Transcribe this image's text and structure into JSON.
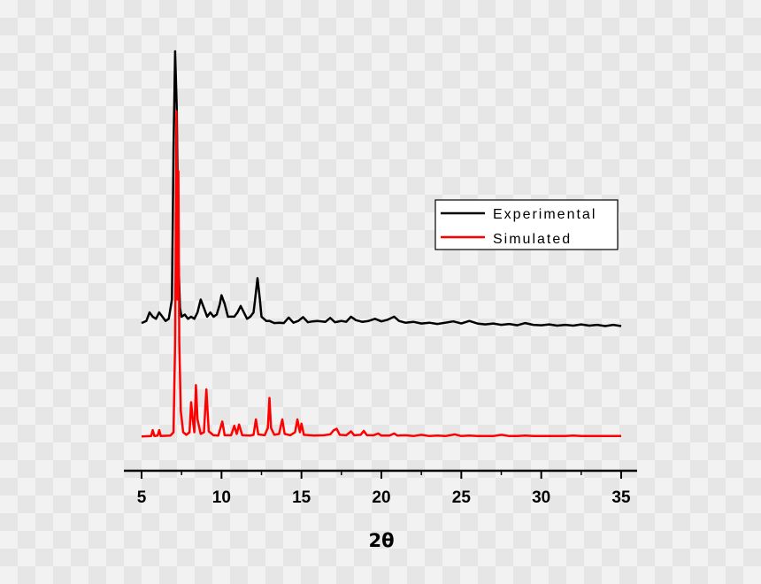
{
  "chart_data": {
    "type": "line",
    "title": "",
    "xlabel": "2θ",
    "ylabel": "",
    "xlim": [
      4,
      36
    ],
    "ylim": [
      0,
      110
    ],
    "xticks": [
      5,
      10,
      15,
      20,
      25,
      30,
      35
    ],
    "grid": false,
    "legend_position": "center-right",
    "series": [
      {
        "name": "Experimental",
        "color": "#000000",
        "points": [
          [
            5.0,
            34.5
          ],
          [
            5.3,
            35
          ],
          [
            5.5,
            37
          ],
          [
            5.7,
            36
          ],
          [
            5.9,
            35.5
          ],
          [
            6.1,
            37
          ],
          [
            6.3,
            36
          ],
          [
            6.5,
            35
          ],
          [
            6.7,
            35.5
          ],
          [
            6.9,
            40
          ],
          [
            7.0,
            75
          ],
          [
            7.1,
            98
          ],
          [
            7.2,
            85
          ],
          [
            7.3,
            50
          ],
          [
            7.4,
            38
          ],
          [
            7.5,
            36
          ],
          [
            7.7,
            36.5
          ],
          [
            7.9,
            35.5
          ],
          [
            8.1,
            36
          ],
          [
            8.3,
            35.5
          ],
          [
            8.5,
            37
          ],
          [
            8.7,
            40
          ],
          [
            8.9,
            38
          ],
          [
            9.1,
            36
          ],
          [
            9.3,
            37
          ],
          [
            9.5,
            36
          ],
          [
            9.7,
            36.5
          ],
          [
            9.9,
            39
          ],
          [
            10.0,
            41
          ],
          [
            10.2,
            39
          ],
          [
            10.4,
            36
          ],
          [
            10.6,
            36
          ],
          [
            10.8,
            36
          ],
          [
            11.0,
            37
          ],
          [
            11.2,
            38.5
          ],
          [
            11.4,
            37
          ],
          [
            11.6,
            35.5
          ],
          [
            11.8,
            36
          ],
          [
            12.0,
            37
          ],
          [
            12.1,
            40
          ],
          [
            12.25,
            45
          ],
          [
            12.4,
            40
          ],
          [
            12.5,
            36
          ],
          [
            12.8,
            35
          ],
          [
            13.0,
            35
          ],
          [
            13.3,
            34.5
          ],
          [
            13.6,
            34.6
          ],
          [
            13.9,
            34.5
          ],
          [
            14.2,
            35.8
          ],
          [
            14.5,
            34.6
          ],
          [
            14.8,
            35
          ],
          [
            15.1,
            35.9
          ],
          [
            15.4,
            34.7
          ],
          [
            15.7,
            34.9
          ],
          [
            16.0,
            35
          ],
          [
            16.5,
            34.8
          ],
          [
            16.8,
            35.7
          ],
          [
            17.1,
            34.7
          ],
          [
            17.5,
            35
          ],
          [
            17.8,
            34.8
          ],
          [
            18.1,
            36
          ],
          [
            18.4,
            35.2
          ],
          [
            18.8,
            34.8
          ],
          [
            19.2,
            35
          ],
          [
            19.6,
            35.5
          ],
          [
            20.0,
            34.9
          ],
          [
            20.4,
            35.3
          ],
          [
            20.8,
            36
          ],
          [
            21.1,
            35
          ],
          [
            21.5,
            34.6
          ],
          [
            22.0,
            34.8
          ],
          [
            22.5,
            34.4
          ],
          [
            23.0,
            34.6
          ],
          [
            23.5,
            34.3
          ],
          [
            24.0,
            34.6
          ],
          [
            24.5,
            34.9
          ],
          [
            25.0,
            34.4
          ],
          [
            25.5,
            35
          ],
          [
            26.0,
            34.4
          ],
          [
            26.5,
            34.2
          ],
          [
            27.0,
            34.4
          ],
          [
            27.5,
            34.1
          ],
          [
            28.0,
            34.3
          ],
          [
            28.5,
            34
          ],
          [
            29.0,
            34.5
          ],
          [
            29.5,
            34.1
          ],
          [
            30.0,
            34
          ],
          [
            30.5,
            34.2
          ],
          [
            31.0,
            33.9
          ],
          [
            31.5,
            34.1
          ],
          [
            32.0,
            33.9
          ],
          [
            32.5,
            34.2
          ],
          [
            33.0,
            33.9
          ],
          [
            33.5,
            34.1
          ],
          [
            34.0,
            33.8
          ],
          [
            34.5,
            34.1
          ],
          [
            35.0,
            33.8
          ]
        ]
      },
      {
        "name": "Simulated",
        "color": "#ff0000",
        "points": [
          [
            5.0,
            8
          ],
          [
            5.6,
            8.1
          ],
          [
            5.7,
            9.5
          ],
          [
            5.8,
            8.1
          ],
          [
            6.0,
            8.2
          ],
          [
            6.1,
            9.5
          ],
          [
            6.2,
            8.1
          ],
          [
            6.8,
            8.2
          ],
          [
            7.0,
            9
          ],
          [
            7.1,
            30
          ],
          [
            7.18,
            84
          ],
          [
            7.24,
            40
          ],
          [
            7.3,
            70
          ],
          [
            7.36,
            30
          ],
          [
            7.45,
            14
          ],
          [
            7.6,
            9
          ],
          [
            7.8,
            8.4
          ],
          [
            8.0,
            9
          ],
          [
            8.1,
            16
          ],
          [
            8.2,
            12
          ],
          [
            8.3,
            9
          ],
          [
            8.4,
            20
          ],
          [
            8.5,
            12
          ],
          [
            8.7,
            8.6
          ],
          [
            8.9,
            9
          ],
          [
            9.05,
            19
          ],
          [
            9.2,
            9.2
          ],
          [
            9.5,
            8.3
          ],
          [
            9.8,
            8.2
          ],
          [
            10.05,
            11.5
          ],
          [
            10.2,
            8.3
          ],
          [
            10.6,
            8.3
          ],
          [
            10.8,
            10.5
          ],
          [
            10.95,
            8.6
          ],
          [
            11.1,
            10.8
          ],
          [
            11.3,
            8.3
          ],
          [
            11.8,
            8.2
          ],
          [
            12.0,
            8.4
          ],
          [
            12.15,
            12
          ],
          [
            12.3,
            8.5
          ],
          [
            12.7,
            8.3
          ],
          [
            12.9,
            10
          ],
          [
            13.0,
            17
          ],
          [
            13.1,
            10
          ],
          [
            13.3,
            8.4
          ],
          [
            13.6,
            8.6
          ],
          [
            13.8,
            12
          ],
          [
            13.95,
            8.6
          ],
          [
            14.3,
            8.3
          ],
          [
            14.6,
            9
          ],
          [
            14.75,
            12
          ],
          [
            14.9,
            9
          ],
          [
            15.0,
            11
          ],
          [
            15.15,
            8.4
          ],
          [
            15.8,
            8.2
          ],
          [
            16.4,
            8.3
          ],
          [
            16.8,
            8.5
          ],
          [
            17.0,
            9.4
          ],
          [
            17.2,
            9.8
          ],
          [
            17.4,
            8.4
          ],
          [
            17.8,
            8.3
          ],
          [
            18.1,
            9.2
          ],
          [
            18.3,
            8.3
          ],
          [
            18.7,
            8.4
          ],
          [
            18.9,
            9.3
          ],
          [
            19.1,
            8.3
          ],
          [
            19.5,
            8.3
          ],
          [
            19.8,
            8.7
          ],
          [
            20.0,
            8.2
          ],
          [
            20.5,
            8.2
          ],
          [
            20.8,
            8.7
          ],
          [
            21.0,
            8.2
          ],
          [
            21.5,
            8.3
          ],
          [
            22.0,
            8.1
          ],
          [
            22.5,
            8.4
          ],
          [
            23.0,
            8.1
          ],
          [
            23.5,
            8.2
          ],
          [
            24.0,
            8.1
          ],
          [
            24.6,
            8.5
          ],
          [
            25.0,
            8.1
          ],
          [
            25.5,
            8.2
          ],
          [
            26.0,
            8.1
          ],
          [
            26.5,
            8.1
          ],
          [
            27.0,
            8.1
          ],
          [
            27.5,
            8.4
          ],
          [
            28.0,
            8.1
          ],
          [
            28.5,
            8.1
          ],
          [
            29.0,
            8.2
          ],
          [
            29.5,
            8.1
          ],
          [
            30.0,
            8.1
          ],
          [
            30.5,
            8.1
          ],
          [
            31.0,
            8.1
          ],
          [
            31.5,
            8.1
          ],
          [
            32.0,
            8.2
          ],
          [
            32.5,
            8.1
          ],
          [
            33.0,
            8.1
          ],
          [
            33.5,
            8.1
          ],
          [
            34.0,
            8.1
          ],
          [
            34.5,
            8.1
          ],
          [
            35.0,
            8.1
          ]
        ]
      }
    ]
  }
}
